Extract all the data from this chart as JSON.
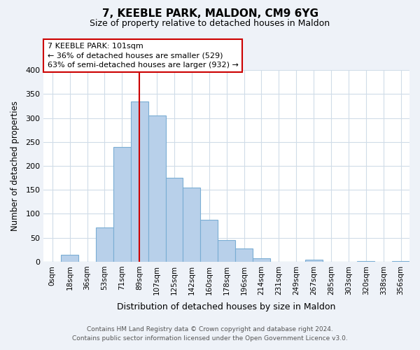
{
  "title": "7, KEEBLE PARK, MALDON, CM9 6YG",
  "subtitle": "Size of property relative to detached houses in Maldon",
  "xlabel": "Distribution of detached houses by size in Maldon",
  "ylabel": "Number of detached properties",
  "bar_labels": [
    "0sqm",
    "18sqm",
    "36sqm",
    "53sqm",
    "71sqm",
    "89sqm",
    "107sqm",
    "125sqm",
    "142sqm",
    "160sqm",
    "178sqm",
    "196sqm",
    "214sqm",
    "231sqm",
    "249sqm",
    "267sqm",
    "285sqm",
    "303sqm",
    "320sqm",
    "338sqm",
    "356sqm"
  ],
  "bar_values": [
    0,
    15,
    0,
    72,
    240,
    335,
    305,
    175,
    155,
    87,
    45,
    27,
    7,
    0,
    0,
    4,
    0,
    0,
    2,
    0,
    2
  ],
  "bar_color": "#b8d0ea",
  "bar_edge_color": "#7aadd4",
  "vline_x": 5,
  "vline_color": "#cc0000",
  "ylim": [
    0,
    400
  ],
  "yticks": [
    0,
    50,
    100,
    150,
    200,
    250,
    300,
    350,
    400
  ],
  "annotation_title": "7 KEEBLE PARK: 101sqm",
  "annotation_line1": "← 36% of detached houses are smaller (529)",
  "annotation_line2": "63% of semi-detached houses are larger (932) →",
  "footer_line1": "Contains HM Land Registry data © Crown copyright and database right 2024.",
  "footer_line2": "Contains public sector information licensed under the Open Government Licence v3.0.",
  "bg_color": "#eef2f8",
  "plot_bg_color": "#ffffff",
  "grid_color": "#d0dce8"
}
